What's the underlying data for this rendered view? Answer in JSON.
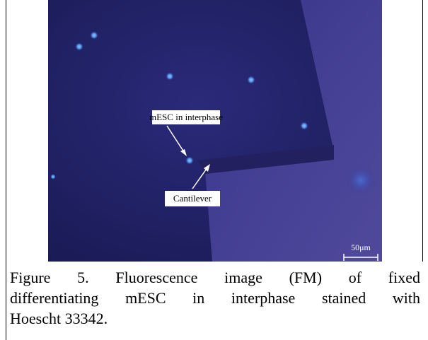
{
  "figure": {
    "labels": {
      "cell": "mESC in interphase",
      "cantilever": "Cantilever",
      "scale_bar": "50μm"
    }
  },
  "caption": {
    "lines": [
      "Figure 5. Fluorescence image (FM) of fixed",
      "differentiating mESC in interphase stained with",
      "Hoescht 33342."
    ]
  }
}
